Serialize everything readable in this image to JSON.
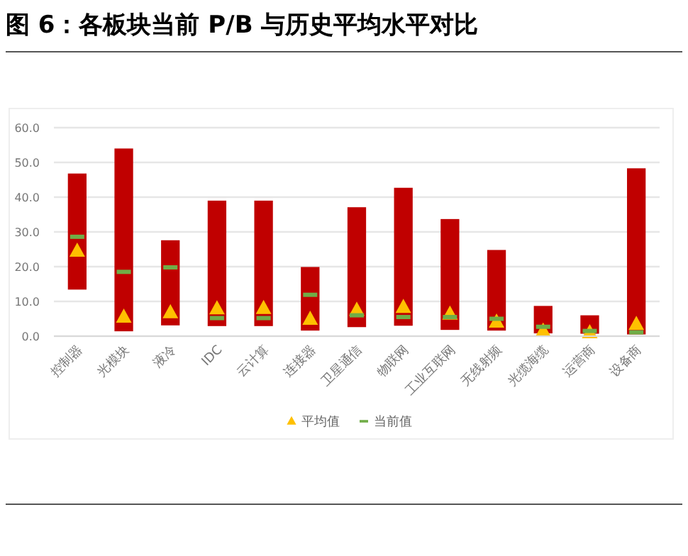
{
  "chart_data": {
    "type": "bar",
    "title": "图 6：各板块当前 P/B 与历史平均水平对比",
    "categories": [
      "控制器",
      "光模块",
      "液冷",
      "IDC",
      "云计算",
      "连接器",
      "卫星通信",
      "物联网",
      "工业互联网",
      "无线射频",
      "光缆海缆",
      "运营商",
      "设备商"
    ],
    "series": [
      {
        "type": "bar",
        "color": "#c00000",
        "base": [
          13.4,
          1.4,
          3.1,
          2.9,
          2.9,
          1.6,
          2.6,
          3.0,
          1.8,
          1.6,
          0.8,
          0.7,
          0.5
        ],
        "values": [
          33.4,
          52.6,
          24.5,
          36.1,
          36.1,
          18.3,
          34.5,
          39.7,
          31.9,
          23.2,
          7.9,
          5.3,
          47.8
        ]
      },
      {
        "type": "scatter",
        "name": "平均值",
        "color": "#ffc000",
        "marker": "triangle",
        "values": [
          24.5,
          5.5,
          6.8,
          7.9,
          8.0,
          4.9,
          7.5,
          8.3,
          6.4,
          4.1,
          1.5,
          1.0,
          3.4
        ]
      },
      {
        "type": "scatter",
        "name": "当前值",
        "color": "#70ad47",
        "line_style": "solid",
        "values": [
          28.6,
          18.5,
          19.8,
          5.2,
          5.2,
          11.9,
          6.0,
          5.5,
          5.5,
          5.0,
          2.7,
          1.5,
          1.1
        ]
      }
    ],
    "ylim": [
      0,
      60
    ],
    "yticks": [
      {
        "value": 0,
        "label": "0.0"
      },
      {
        "value": 10,
        "label": "10.0"
      },
      {
        "value": 20,
        "label": "20.0"
      },
      {
        "value": 30,
        "label": "30.0"
      },
      {
        "value": 40,
        "label": "40.0"
      },
      {
        "value": 50,
        "label": "50.0"
      },
      {
        "value": 60,
        "label": "60.0"
      }
    ],
    "grid": "y",
    "legend": "bottom"
  }
}
